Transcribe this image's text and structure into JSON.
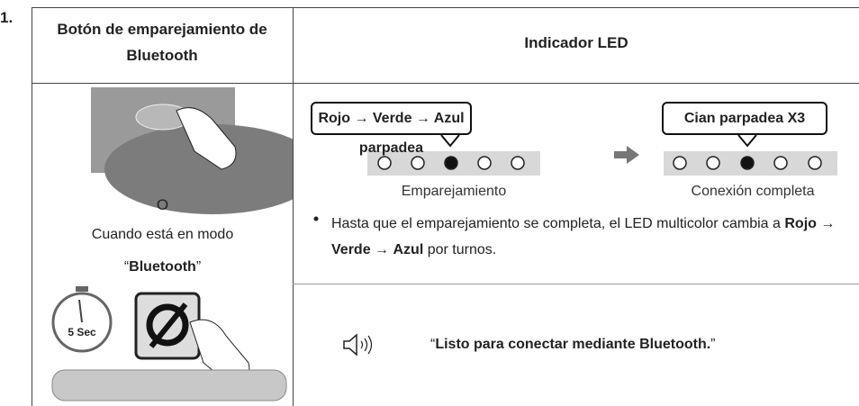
{
  "step": "1.",
  "header": {
    "button_column": "Botón de emparejamiento de Bluetooth",
    "led_column": "Indicador LED"
  },
  "button": {
    "alternative": "O",
    "mode_intro": "Cuando está en modo",
    "mode_open": "“",
    "mode_name": "Bluetooth",
    "mode_close": "”",
    "timer_label": "5 Sec"
  },
  "led": {
    "pairing": {
      "callout": "Rojo → Verde → Azul parpadea",
      "caption": "Emparejamiento"
    },
    "complete": {
      "callout": "Cian parpadea X3",
      "caption": "Conexión completa"
    },
    "note": [
      "Hasta que el emparejamiento se completa, el LED multicolor cambia a ",
      "Rojo",
      " → ",
      "Verde",
      " → ",
      "Azul",
      " por turnos."
    ]
  },
  "voice": {
    "open": "“",
    "message": "Listo para conectar mediante Bluetooth.",
    "close": "”"
  }
}
